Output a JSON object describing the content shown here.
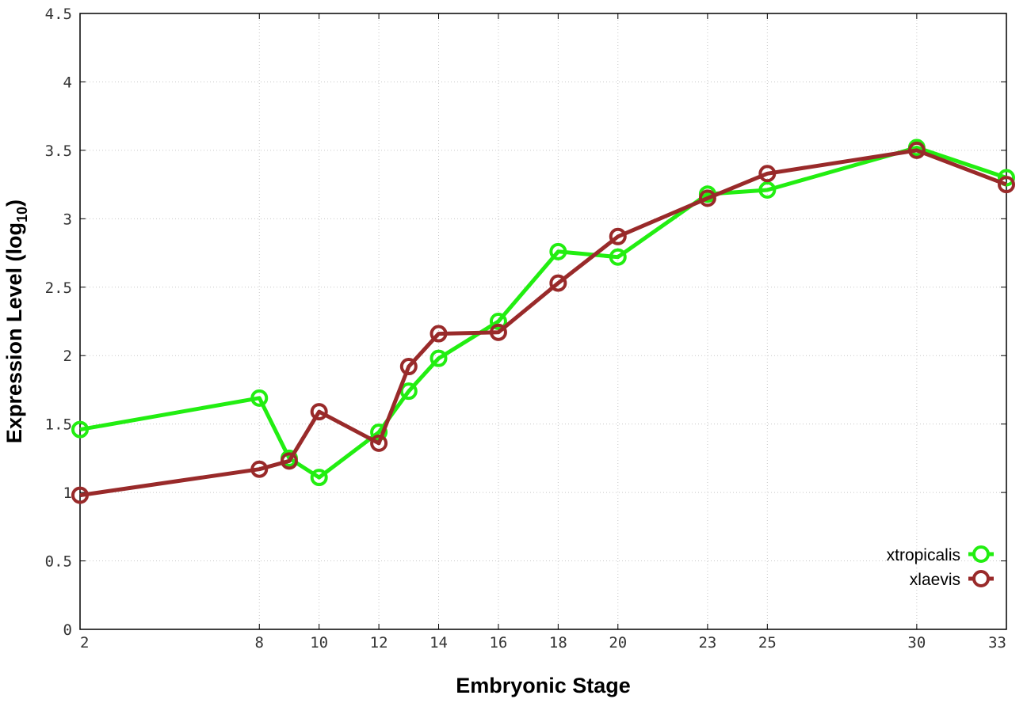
{
  "chart_data": {
    "type": "line",
    "xlabel": "Embryonic Stage",
    "ylabel": "Expression Level (log",
    "ylabel_sub": "10",
    "ylabel_close": ")",
    "x_ticks": [
      2,
      8,
      10,
      12,
      14,
      16,
      18,
      20,
      23,
      25,
      30,
      33
    ],
    "y_ticks": [
      "0",
      "0.5",
      "1",
      "1.5",
      "2",
      "2.5",
      "3",
      "3.5",
      "4",
      "4.5"
    ],
    "ylim": [
      0,
      4.5
    ],
    "grid": true,
    "legend_position": "bottom-right",
    "x": [
      2,
      8,
      9,
      10,
      12,
      13,
      14,
      16,
      18,
      20,
      23,
      25,
      30,
      33
    ],
    "series": [
      {
        "name": "xtropicalis",
        "color": "#22ee11",
        "values": [
          1.46,
          1.69,
          1.25,
          1.11,
          1.44,
          1.74,
          1.98,
          2.25,
          2.76,
          2.72,
          3.18,
          3.21,
          3.52,
          3.3
        ]
      },
      {
        "name": "xlaevis",
        "color": "#992a2a",
        "values": [
          0.98,
          1.17,
          1.23,
          1.59,
          1.36,
          1.92,
          2.16,
          2.17,
          2.53,
          2.87,
          3.15,
          3.33,
          3.5,
          3.25
        ]
      }
    ]
  }
}
